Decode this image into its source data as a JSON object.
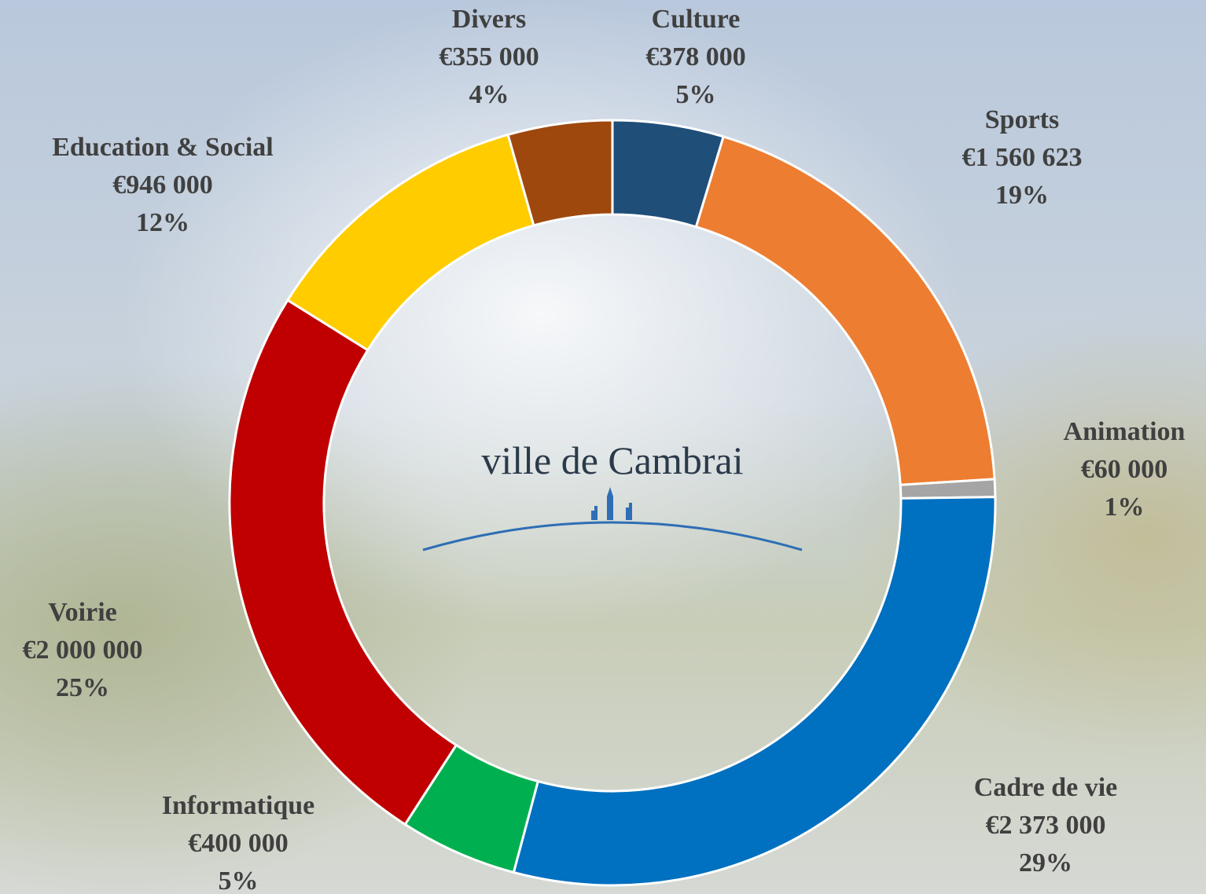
{
  "chart_data": {
    "type": "donut",
    "categories": [
      "Culture",
      "Sports",
      "Animation",
      "Cadre de vie",
      "Informatique",
      "Voirie",
      "Education & Social",
      "Divers"
    ],
    "values": [
      378000,
      1560623,
      60000,
      2373000,
      400000,
      2000000,
      946000,
      355000
    ],
    "value_labels": [
      "€378 000",
      "€1 560 623",
      "€60 000",
      "€2 373 000",
      "€400 000",
      "€2 000 000",
      "€946 000",
      "€355 000"
    ],
    "percent_labels": [
      "5%",
      "19%",
      "1%",
      "29%",
      "5%",
      "25%",
      "12%",
      "4%"
    ],
    "colors": [
      "#1f4e79",
      "#ed7d31",
      "#a5a5a5",
      "#0070c0",
      "#00b050",
      "#c00000",
      "#ffcc00",
      "#9e480e"
    ],
    "center_text": "ville de Cambrai"
  }
}
